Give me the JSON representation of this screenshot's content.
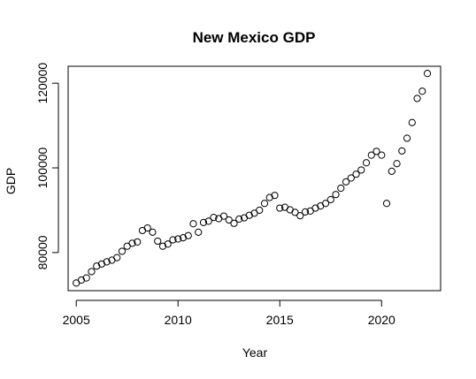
{
  "chart_data": {
    "type": "scatter",
    "title": "New Mexico GDP",
    "xlabel": "Year",
    "ylabel": "GDP",
    "xlim": [
      2004.6,
      2022.9
    ],
    "ylim": [
      71000,
      124000
    ],
    "x_ticks": [
      2005,
      2010,
      2015,
      2020
    ],
    "y_ticks": [
      80000,
      100000,
      120000
    ],
    "grid": false,
    "series": [
      {
        "x": [
          2005.0,
          2005.25,
          2005.5,
          2005.75,
          2006.0,
          2006.25,
          2006.5,
          2006.75,
          2007.0,
          2007.25,
          2007.5,
          2007.75,
          2008.0,
          2008.25,
          2008.5,
          2008.75,
          2009.0,
          2009.25,
          2009.5,
          2009.75,
          2010.0,
          2010.25,
          2010.5,
          2010.75,
          2011.0,
          2011.25,
          2011.5,
          2011.75,
          2012.0,
          2012.25,
          2012.5,
          2012.75,
          2013.0,
          2013.25,
          2013.5,
          2013.75,
          2014.0,
          2014.25,
          2014.5,
          2014.75,
          2015.0,
          2015.25,
          2015.5,
          2015.75,
          2016.0,
          2016.25,
          2016.5,
          2016.75,
          2017.0,
          2017.25,
          2017.5,
          2017.75,
          2018.0,
          2018.25,
          2018.5,
          2018.75,
          2019.0,
          2019.25,
          2019.5,
          2019.75,
          2020.0,
          2020.25,
          2020.5,
          2020.75,
          2021.0,
          2021.25,
          2021.5,
          2021.75,
          2022.0,
          2022.25
        ],
        "y": [
          72800,
          73500,
          74000,
          75500,
          76800,
          77300,
          77800,
          78200,
          78800,
          80300,
          81500,
          82200,
          82500,
          85200,
          85800,
          84800,
          82700,
          81500,
          82000,
          83000,
          83200,
          83500,
          84000,
          86800,
          84800,
          87100,
          87400,
          88300,
          88000,
          88600,
          87700,
          86900,
          87900,
          88200,
          88800,
          89300,
          90000,
          91600,
          93000,
          93500,
          90500,
          90700,
          90100,
          89500,
          88700,
          89600,
          89800,
          90500,
          91000,
          91600,
          92500,
          93700,
          95200,
          96700,
          97600,
          98500,
          99500,
          101200,
          103000,
          103900,
          103000,
          91600,
          99200,
          101000,
          104000,
          107000,
          110700,
          116400,
          118100,
          122300
        ]
      }
    ]
  }
}
